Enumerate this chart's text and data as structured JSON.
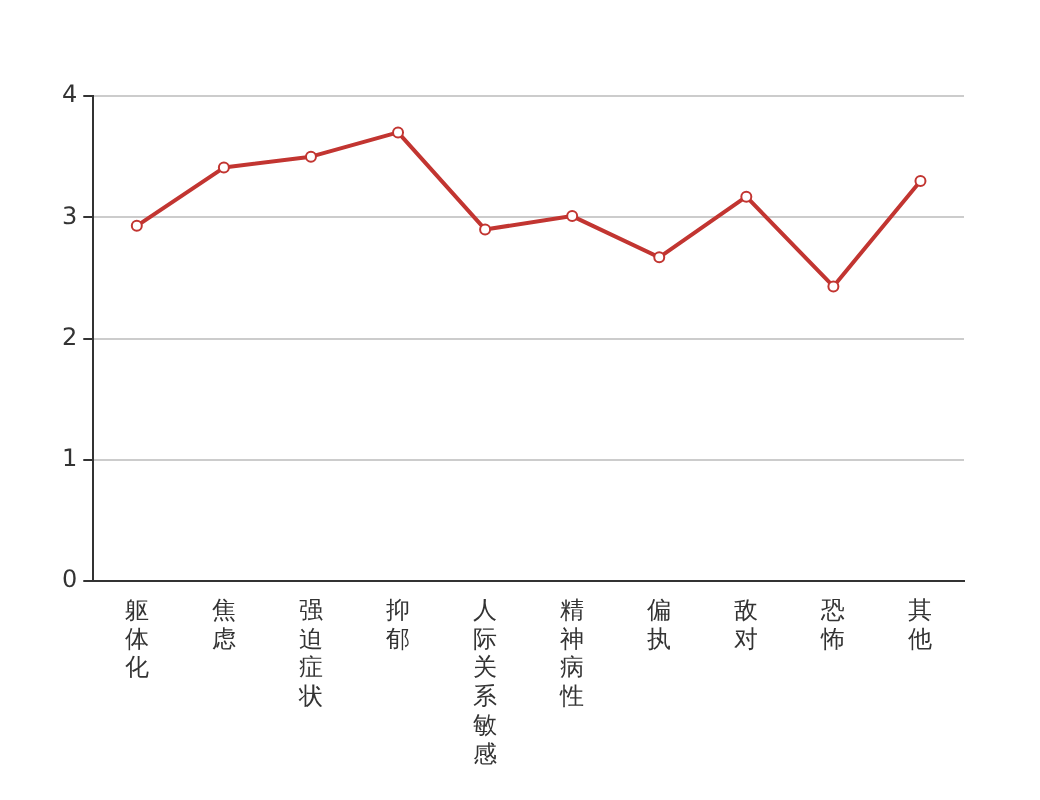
{
  "chart_data": {
    "type": "line",
    "categories": [
      "躯体化",
      "焦虑",
      "强迫症状",
      "抑郁",
      "人际关系敏感",
      "精神病性",
      "偏执",
      "敌对",
      "恐怖",
      "其他"
    ],
    "series": [
      {
        "color": "#c23531",
        "values": [
          2.93,
          3.41,
          3.5,
          3.7,
          2.9,
          3.01,
          2.67,
          3.17,
          2.43,
          3.3
        ]
      }
    ],
    "ylim": [
      0,
      4
    ],
    "yticks": [
      0,
      1,
      2,
      3,
      4
    ],
    "grid": "y",
    "legend": false,
    "marker": "circle",
    "line_style": "solid"
  }
}
